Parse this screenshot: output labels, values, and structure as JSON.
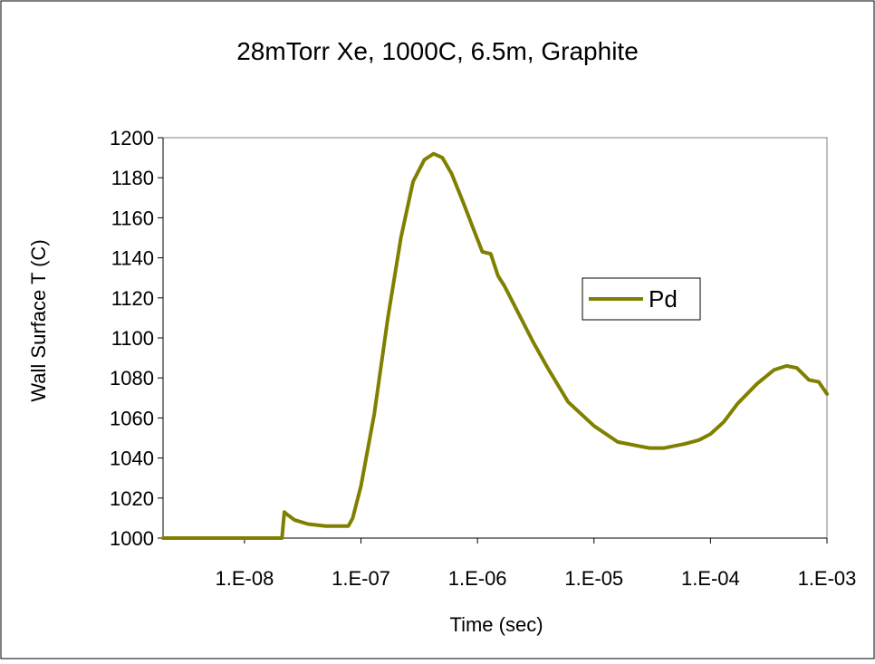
{
  "chart_data": {
    "type": "line",
    "title": "28mTorr Xe, 1000C, 6.5m, Graphite",
    "xlabel": "Time (sec)",
    "ylabel": "Wall Surface T (C)",
    "x_scale": "log",
    "xlim": [
      2e-09,
      0.001
    ],
    "ylim": [
      1000,
      1200
    ],
    "x_ticks": [
      1e-08,
      1e-07,
      1e-06,
      1e-05,
      0.0001,
      0.001
    ],
    "x_tick_labels": [
      "1.E-08",
      "1.E-07",
      "1.E-06",
      "1.E-05",
      "1.E-04",
      "1.E-03"
    ],
    "y_ticks": [
      1000,
      1020,
      1040,
      1060,
      1080,
      1100,
      1120,
      1140,
      1160,
      1180,
      1200
    ],
    "y_tick_labels": [
      "1000",
      "1020",
      "1040",
      "1060",
      "1080",
      "1100",
      "1120",
      "1140",
      "1160",
      "1180",
      "1200"
    ],
    "grid": false,
    "legend": {
      "position": "right",
      "entries": [
        "Pd"
      ]
    },
    "series": [
      {
        "name": "Pd",
        "color": "#808000",
        "x": [
          2e-09,
          1e-08,
          2.1e-08,
          2.2e-08,
          2.3e-08,
          2.7e-08,
          3.5e-08,
          5e-08,
          7e-08,
          7.8e-08,
          8.5e-08,
          1e-07,
          1.3e-07,
          1.7e-07,
          2.2e-07,
          2.8e-07,
          3.5e-07,
          4.2e-07,
          5e-07,
          6e-07,
          7.5e-07,
          9e-07,
          1.1e-06,
          1.3e-06,
          1.5e-06,
          1.7e-06,
          2e-06,
          3e-06,
          4e-06,
          6e-06,
          1e-05,
          1.6e-05,
          2.4e-05,
          3e-05,
          4e-05,
          6e-05,
          8e-05,
          0.0001,
          0.00013,
          0.00017,
          0.00025,
          0.00035,
          0.00045,
          0.00055,
          0.0007,
          0.00085,
          0.001
        ],
        "y": [
          1000,
          1000,
          1000,
          1013,
          1012,
          1009,
          1007,
          1006,
          1006,
          1006,
          1010,
          1026,
          1062,
          1110,
          1150,
          1178,
          1189,
          1192,
          1190,
          1182,
          1168,
          1156,
          1143,
          1142,
          1131,
          1126,
          1118,
          1098,
          1085,
          1068,
          1056,
          1048,
          1046,
          1045,
          1045,
          1047,
          1049,
          1052,
          1058,
          1067,
          1077,
          1084,
          1086,
          1085,
          1079,
          1078,
          1072
        ]
      }
    ]
  }
}
